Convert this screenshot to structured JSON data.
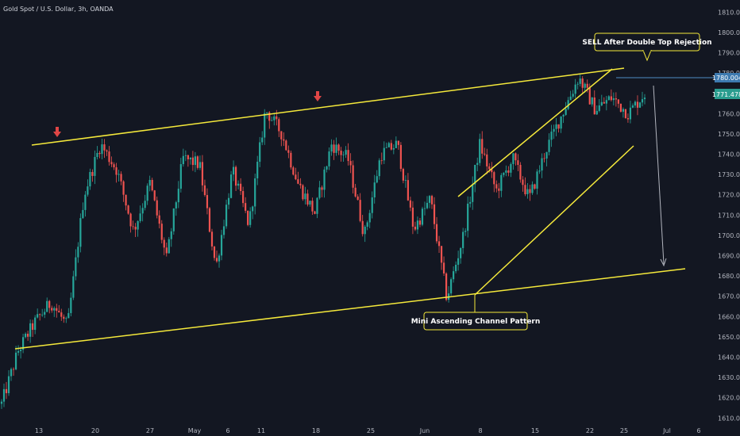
{
  "header": {
    "title": "Gold Spot / U.S. Dollar, 3h, OANDA"
  },
  "colors": {
    "background": "#131722",
    "bull": "#26a69a",
    "bear": "#ef5350",
    "trendline": "#f5e93b",
    "arrow": "#e04646",
    "projection": "#b2b5be",
    "price_line": "#4f8ec4",
    "current_badge": "#2a9d8f",
    "level_badge": "#3d7ab0"
  },
  "badges": {
    "level": "1780.004",
    "current": "1771.478"
  },
  "annotations": {
    "sell": "SELL After Double Top Rejection",
    "channel": "Mini Ascending Channel Pattern"
  },
  "chart_data": {
    "type": "candlestick",
    "ylim": [
      1607,
      1816
    ],
    "y_ticks": [
      "1610.000",
      "1620.000",
      "1630.000",
      "1640.000",
      "1650.000",
      "1660.000",
      "1670.000",
      "1680.000",
      "1690.000",
      "1700.000",
      "1710.000",
      "1720.000",
      "1730.000",
      "1740.000",
      "1750.000",
      "1760.000",
      "1770.000",
      "1780.000",
      "1790.000",
      "1800.000",
      "1810.000"
    ],
    "x_ticks": [
      "13",
      "20",
      "27",
      "May",
      "6",
      "11",
      "18",
      "25",
      "Jun",
      "8",
      "15",
      "22",
      "25",
      "Jul",
      "6"
    ],
    "grid": false,
    "trend_anchors": [
      1617,
      1643,
      1657,
      1667,
      1655,
      1720,
      1745,
      1732,
      1702,
      1726,
      1688,
      1738,
      1735,
      1684,
      1732,
      1705,
      1762,
      1750,
      1725,
      1711,
      1745,
      1738,
      1700,
      1740,
      1745,
      1703,
      1718,
      1669,
      1700,
      1745,
      1722,
      1738,
      1718,
      1742,
      1760,
      1778,
      1762,
      1768,
      1760,
      1770
    ]
  }
}
